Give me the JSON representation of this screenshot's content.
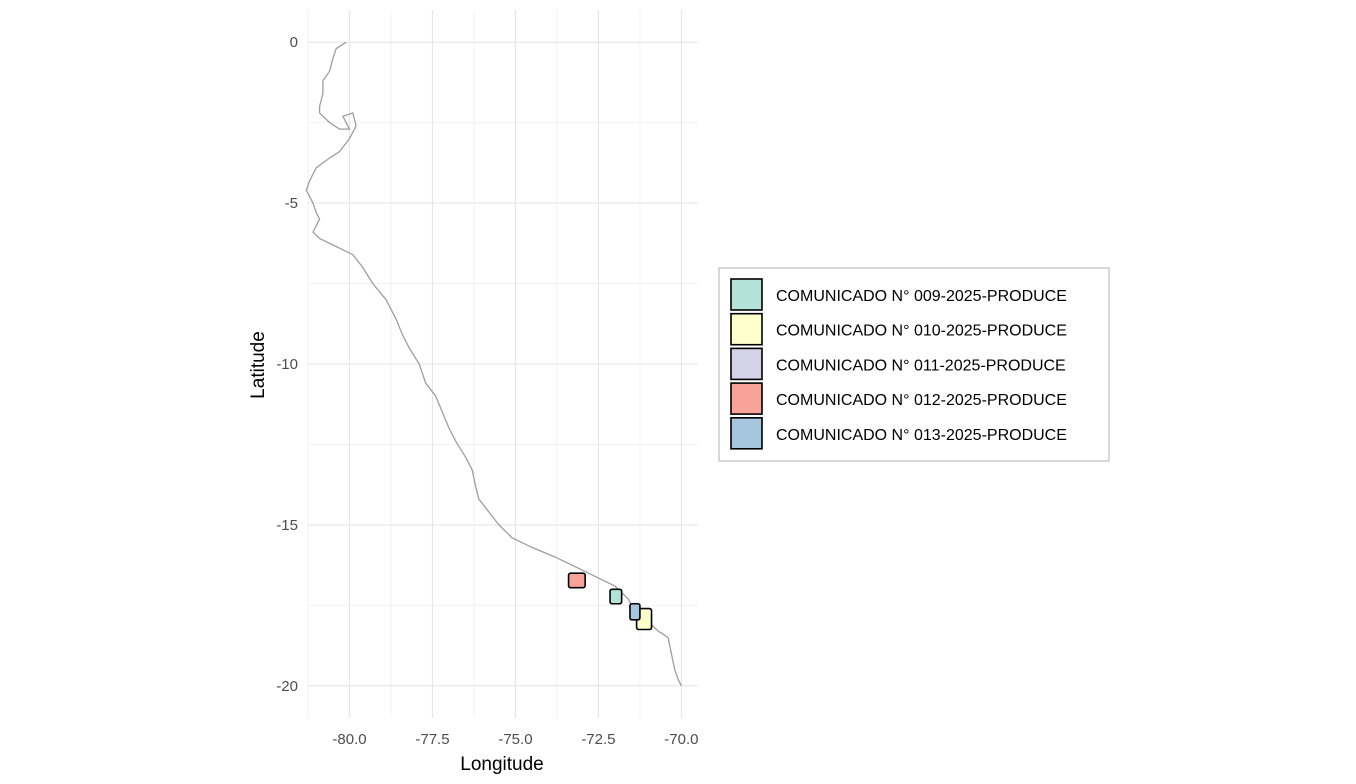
{
  "chart_data": {
    "type": "map",
    "xlabel": "Longitude",
    "ylabel": "Latitude",
    "xlim": [
      -81.25,
      -69.5
    ],
    "ylim": [
      -21.0,
      1.0
    ],
    "x_ticks": [
      -80.0,
      -77.5,
      -75.0,
      -72.5,
      -70.0
    ],
    "x_tick_labels": [
      "-80.0",
      "-77.5",
      "-75.0",
      "-72.5",
      "-70.0"
    ],
    "y_ticks": [
      0,
      -5,
      -10,
      -15,
      -20
    ],
    "y_tick_labels": [
      "0",
      "-5",
      "-10",
      "-15",
      "-20"
    ],
    "grid": true,
    "coastline_color": "#9e9e9e",
    "coastline": [
      [
        -80.1,
        0.0
      ],
      [
        -80.4,
        -0.2
      ],
      [
        -80.5,
        -0.5
      ],
      [
        -80.6,
        -0.9
      ],
      [
        -80.8,
        -1.2
      ],
      [
        -80.8,
        -1.6
      ],
      [
        -80.9,
        -2.0
      ],
      [
        -80.9,
        -2.2
      ],
      [
        -80.6,
        -2.5
      ],
      [
        -80.3,
        -2.7
      ],
      [
        -80.0,
        -2.7
      ],
      [
        -80.2,
        -2.3
      ],
      [
        -79.9,
        -2.2
      ],
      [
        -79.8,
        -2.6
      ],
      [
        -80.0,
        -3.0
      ],
      [
        -80.3,
        -3.4
      ],
      [
        -80.6,
        -3.6
      ],
      [
        -81.0,
        -3.9
      ],
      [
        -81.2,
        -4.3
      ],
      [
        -81.3,
        -4.6
      ],
      [
        -81.1,
        -5.0
      ],
      [
        -81.0,
        -5.3
      ],
      [
        -80.9,
        -5.5
      ],
      [
        -81.1,
        -5.9
      ],
      [
        -80.9,
        -6.1
      ],
      [
        -80.5,
        -6.3
      ],
      [
        -79.9,
        -6.6
      ],
      [
        -79.6,
        -7.0
      ],
      [
        -79.3,
        -7.5
      ],
      [
        -78.9,
        -8.0
      ],
      [
        -78.6,
        -8.6
      ],
      [
        -78.4,
        -9.1
      ],
      [
        -78.2,
        -9.5
      ],
      [
        -77.9,
        -10.0
      ],
      [
        -77.7,
        -10.6
      ],
      [
        -77.4,
        -11.0
      ],
      [
        -77.2,
        -11.5
      ],
      [
        -77.0,
        -12.0
      ],
      [
        -76.8,
        -12.4
      ],
      [
        -76.5,
        -12.9
      ],
      [
        -76.3,
        -13.3
      ],
      [
        -76.2,
        -13.8
      ],
      [
        -76.1,
        -14.2
      ],
      [
        -75.8,
        -14.6
      ],
      [
        -75.5,
        -15.0
      ],
      [
        -75.1,
        -15.4
      ],
      [
        -74.5,
        -15.7
      ],
      [
        -73.8,
        -16.0
      ],
      [
        -73.2,
        -16.3
      ],
      [
        -72.6,
        -16.6
      ],
      [
        -72.0,
        -16.9
      ],
      [
        -71.6,
        -17.3
      ],
      [
        -71.4,
        -17.7
      ],
      [
        -71.0,
        -18.0
      ],
      [
        -70.7,
        -18.3
      ],
      [
        -70.4,
        -18.5
      ],
      [
        -70.3,
        -19.0
      ],
      [
        -70.2,
        -19.5
      ],
      [
        -70.1,
        -19.8
      ],
      [
        -70.0,
        -20.0
      ]
    ],
    "series": [
      {
        "name": "COMUNICADO N° 009-2025-PRODUCE",
        "color": "#b3e2d8",
        "lon": [
          -72.15,
          -71.8
        ],
        "lat": [
          -17.45,
          -17.0
        ]
      },
      {
        "name": "COMUNICADO N° 010-2025-PRODUCE",
        "color": "#ffffcc",
        "lon": [
          -71.35,
          -70.9
        ],
        "lat": [
          -18.25,
          -17.6
        ]
      },
      {
        "name": "COMUNICADO N° 011-2025-PRODUCE",
        "color": "#d3d2e6",
        "lon": [],
        "lat": []
      },
      {
        "name": "COMUNICADO N° 012-2025-PRODUCE",
        "color": "#f8a39a",
        "lon": [
          -73.4,
          -72.9
        ],
        "lat": [
          -16.95,
          -16.5
        ]
      },
      {
        "name": "COMUNICADO N° 013-2025-PRODUCE",
        "color": "#a6c5df",
        "lon": [
          -71.55,
          -71.25
        ],
        "lat": [
          -17.95,
          -17.45
        ]
      }
    ],
    "legend_position": "right"
  }
}
